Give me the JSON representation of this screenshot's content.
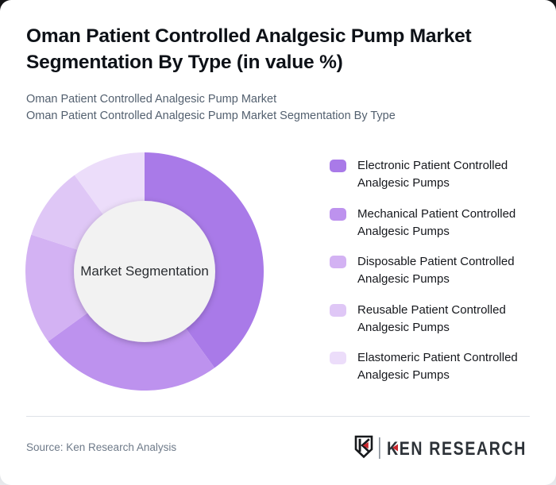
{
  "header": {
    "title": "Oman Patient Controlled Analgesic Pump Market Segmentation By Type (in value %)",
    "subtitle_line1": "Oman Patient Controlled Analgesic Pump Market",
    "subtitle_line2": "Oman Patient Controlled Analgesic Pump Market Segmentation By Type"
  },
  "chart_data": {
    "type": "pie",
    "donut": true,
    "title": "Oman Patient Controlled Analgesic Pump Market Segmentation By Type (in value %)",
    "units": "value %",
    "center_label": "Market Segmentation",
    "legend_position": "right",
    "start_angle_deg": 0,
    "direction": "clockwise",
    "series": [
      {
        "name": "Electronic Patient Controlled Analgesic Pumps",
        "value": 40,
        "color": "#a97ae8"
      },
      {
        "name": "Mechanical Patient Controlled Analgesic Pumps",
        "value": 25,
        "color": "#bd92ee"
      },
      {
        "name": "Disposable Patient Controlled Analgesic Pumps",
        "value": 15,
        "color": "#d3b2f3"
      },
      {
        "name": "Reusable Patient Controlled Analgesic Pumps",
        "value": 10,
        "color": "#dfc7f6"
      },
      {
        "name": "Elastomeric Patient Controlled Analgesic Pumps",
        "value": 10,
        "color": "#ecddfa"
      }
    ],
    "center_fill": "#f2f2f2"
  },
  "footer": {
    "source": "Source: Ken Research Analysis",
    "brand_name": "KEN RESEARCH"
  },
  "colors": {
    "accent_purple": "#a97ae8",
    "brand_red": "#c9252c",
    "brand_dark": "#2d3238"
  }
}
